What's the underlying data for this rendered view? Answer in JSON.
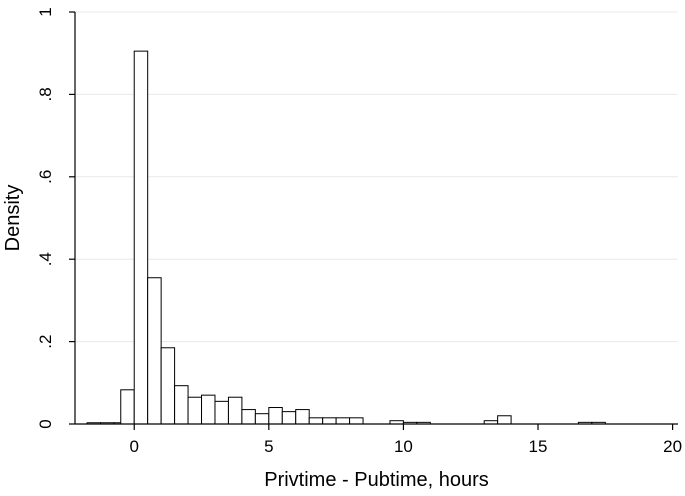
{
  "chart_data": {
    "type": "bar",
    "subtype": "histogram",
    "xlabel": "Privtime - Pubtime, hours",
    "ylabel": "Density",
    "xlim": [
      -2.2,
      20.2
    ],
    "ylim": [
      0,
      1
    ],
    "grid": true,
    "x_ticks": [
      {
        "value": 0,
        "label": "0"
      },
      {
        "value": 5,
        "label": "5"
      },
      {
        "value": 10,
        "label": "10"
      },
      {
        "value": 15,
        "label": "15"
      },
      {
        "value": 20,
        "label": "20"
      }
    ],
    "y_ticks": [
      {
        "value": 0,
        "label": "0"
      },
      {
        "value": 0.2,
        "label": ".2"
      },
      {
        "value": 0.4,
        "label": ".4"
      },
      {
        "value": 0.6,
        "label": ".6"
      },
      {
        "value": 0.8,
        "label": ".8"
      },
      {
        "value": 1,
        "label": "1"
      }
    ],
    "bin_width": 0.5,
    "bins": [
      {
        "x0": -1.75,
        "value": 0.003
      },
      {
        "x0": -1.25,
        "value": 0.003
      },
      {
        "x0": -0.75,
        "value": 0.003
      },
      {
        "x0": -0.5,
        "value": 0.083
      },
      {
        "x0": 0.0,
        "value": 0.905
      },
      {
        "x0": 0.5,
        "value": 0.355
      },
      {
        "x0": 1.0,
        "value": 0.185
      },
      {
        "x0": 1.5,
        "value": 0.093
      },
      {
        "x0": 2.0,
        "value": 0.065
      },
      {
        "x0": 2.5,
        "value": 0.07
      },
      {
        "x0": 3.0,
        "value": 0.055
      },
      {
        "x0": 3.5,
        "value": 0.065
      },
      {
        "x0": 4.0,
        "value": 0.035
      },
      {
        "x0": 4.5,
        "value": 0.025
      },
      {
        "x0": 5.0,
        "value": 0.04
      },
      {
        "x0": 5.5,
        "value": 0.03
      },
      {
        "x0": 6.0,
        "value": 0.035
      },
      {
        "x0": 6.5,
        "value": 0.015
      },
      {
        "x0": 7.0,
        "value": 0.015
      },
      {
        "x0": 7.5,
        "value": 0.015
      },
      {
        "x0": 8.0,
        "value": 0.015
      },
      {
        "x0": 9.5,
        "value": 0.008
      },
      {
        "x0": 10.0,
        "value": 0.004
      },
      {
        "x0": 10.5,
        "value": 0.004
      },
      {
        "x0": 13.0,
        "value": 0.008
      },
      {
        "x0": 13.5,
        "value": 0.02
      },
      {
        "x0": 16.5,
        "value": 0.004
      },
      {
        "x0": 17.0,
        "value": 0.004
      }
    ]
  }
}
